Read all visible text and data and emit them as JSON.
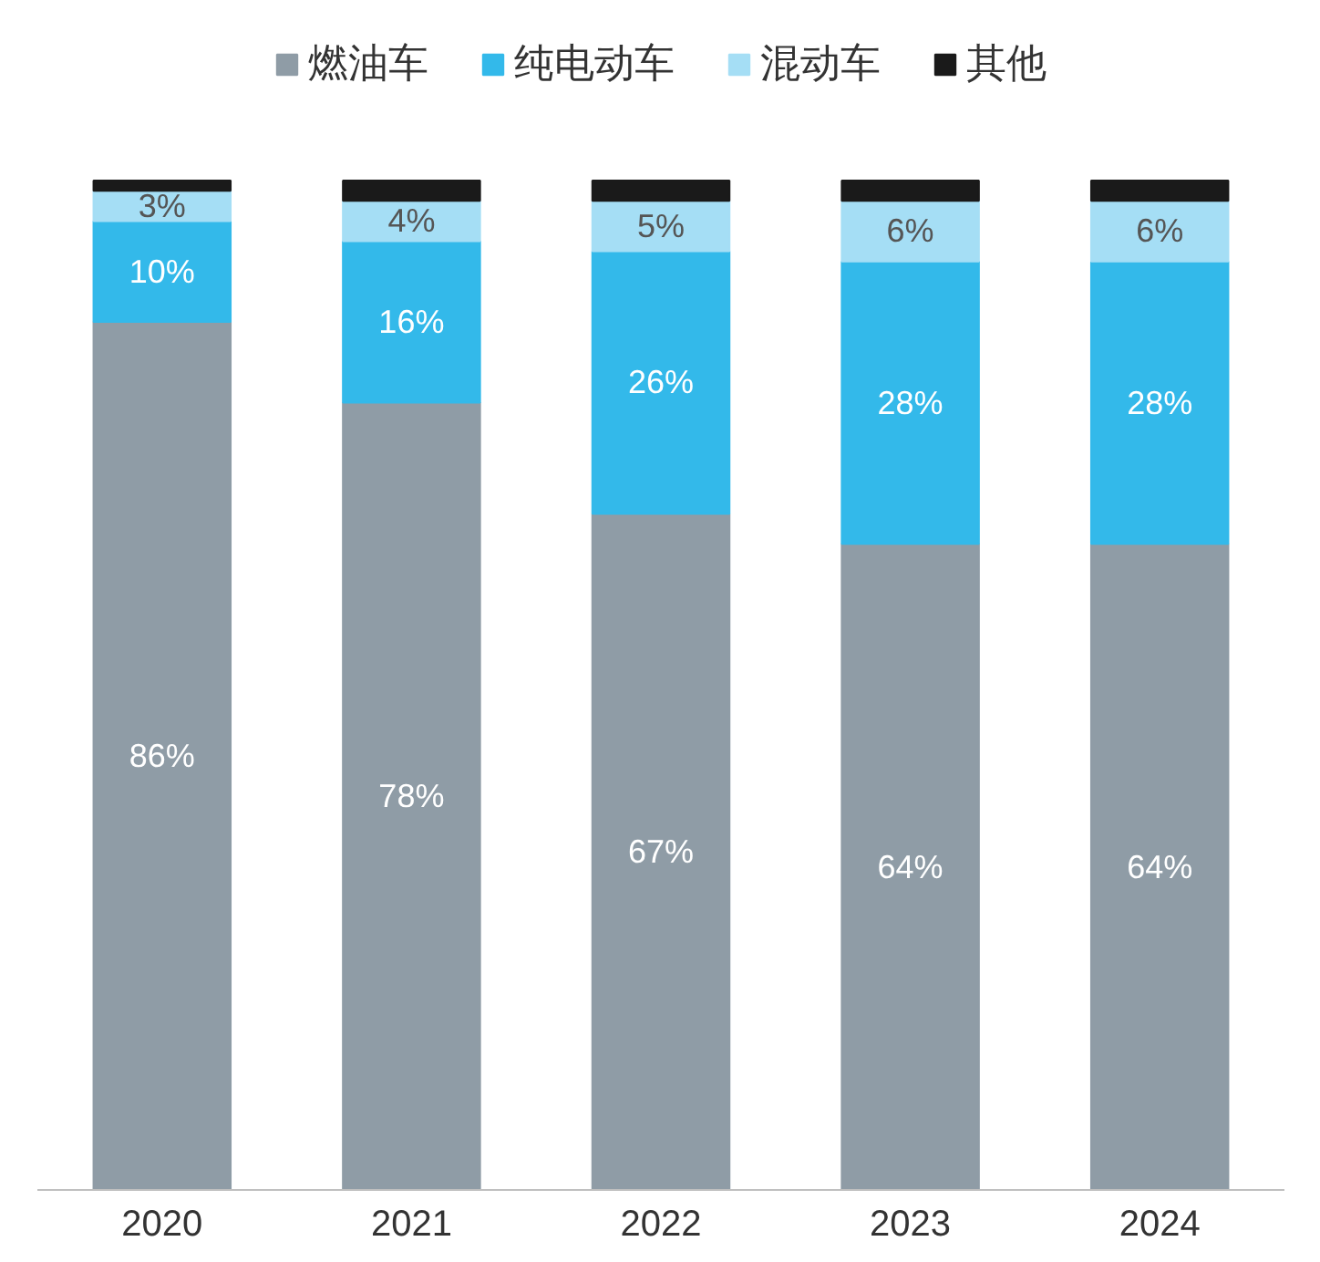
{
  "chart_data": {
    "type": "bar",
    "stacked": true,
    "categories": [
      "2020",
      "2021",
      "2022",
      "2023",
      "2024"
    ],
    "series": [
      {
        "name": "燃油车",
        "color": "#8f9ca6",
        "values": [
          86,
          78,
          67,
          64,
          64
        ],
        "value_labels": [
          "86%",
          "78%",
          "67%",
          "64%",
          "64%"
        ]
      },
      {
        "name": "纯电动车",
        "color": "#33b9ea",
        "values": [
          10,
          16,
          26,
          28,
          28
        ],
        "value_labels": [
          "10%",
          "16%",
          "26%",
          "28%",
          "28%"
        ]
      },
      {
        "name": "混动车",
        "color": "#a5def5",
        "values": [
          3,
          4,
          5,
          6,
          6
        ],
        "value_labels": [
          "3%",
          "4%",
          "5%",
          "6%",
          "6%"
        ]
      },
      {
        "name": "其他",
        "color": "#1a1a1a",
        "values": [
          1,
          2,
          2,
          2,
          2
        ],
        "value_labels": [
          null,
          null,
          null,
          null,
          null
        ]
      }
    ],
    "legend": "top",
    "grid": false
  }
}
